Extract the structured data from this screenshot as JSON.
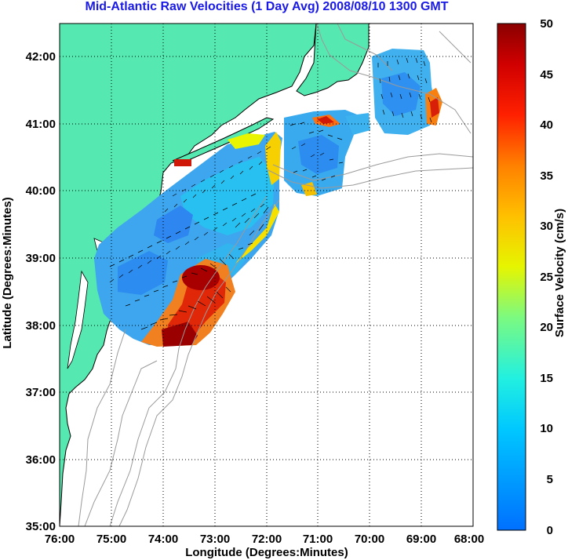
{
  "title": "Mid-Atlantic Raw Velocities (1 Day Avg) 2008/08/10 1300 GMT",
  "axes": {
    "xlabel": "Longitude (Degrees:Minutes)",
    "ylabel": "Latitude (Degrees:Minutes)",
    "x_ticks": [
      "76:00",
      "75:00",
      "74:00",
      "73:00",
      "72:00",
      "71:00",
      "70:00",
      "69:00",
      "68:00"
    ],
    "y_ticks": [
      "35:00",
      "36:00",
      "37:00",
      "38:00",
      "39:00",
      "40:00",
      "41:00",
      "42:00"
    ]
  },
  "colorbar": {
    "label": "Surface Velocity (cm/s)",
    "ticks": [
      "0",
      "5",
      "10",
      "15",
      "20",
      "25",
      "30",
      "35",
      "40",
      "45",
      "50"
    ],
    "range": [
      0,
      50
    ]
  },
  "colors": {
    "land": "#55e8b0",
    "title": "#1a1ae6",
    "coastline": "#000000",
    "bathymetry": "#9a9a9a"
  }
}
